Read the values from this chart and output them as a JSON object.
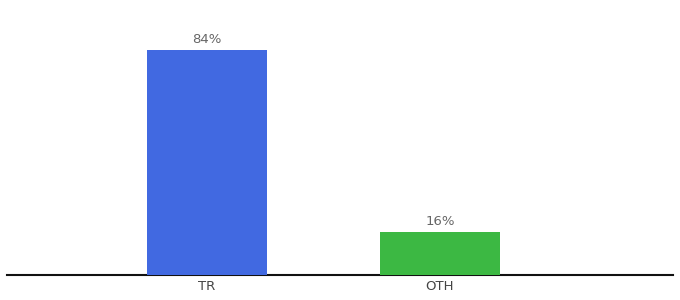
{
  "categories": [
    "TR",
    "OTH"
  ],
  "values": [
    84,
    16
  ],
  "bar_colors": [
    "#4169e1",
    "#3cb843"
  ],
  "value_labels": [
    "84%",
    "16%"
  ],
  "background_color": "#ffffff",
  "bar_width": 0.18,
  "ylim": [
    0,
    100
  ],
  "xlim": [
    0.0,
    1.0
  ],
  "x_positions": [
    0.3,
    0.65
  ],
  "label_fontsize": 9.5,
  "tick_fontsize": 9.5,
  "spine_color": "#111111"
}
